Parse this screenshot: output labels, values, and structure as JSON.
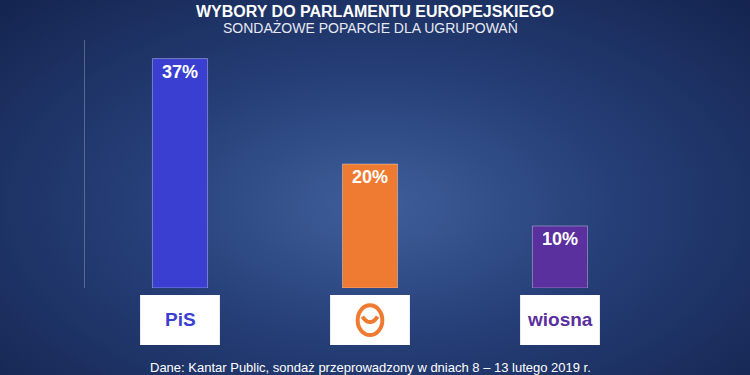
{
  "chart_data": {
    "type": "bar",
    "title": "WYBORY DO PARLAMENTU EUROPEJSKIEGO",
    "subtitle": "SONDAŻOWE POPARCIE DLA UGRUPOWAŃ",
    "source": "Dane: Kantar Public, sondaż przeprowadzony w dniach 8 – 13 lutego 2019 r.",
    "categories": [
      "PiS",
      null,
      "wiosna"
    ],
    "values": [
      37,
      20,
      10
    ],
    "value_labels": [
      "37%",
      "20%",
      "10%"
    ],
    "colors": [
      "#3a3fd2",
      "#ef7a32",
      "#5a2f9e"
    ],
    "ylim": [
      0,
      40
    ],
    "grid": false,
    "data_labels": true,
    "tick_labels": "x"
  }
}
